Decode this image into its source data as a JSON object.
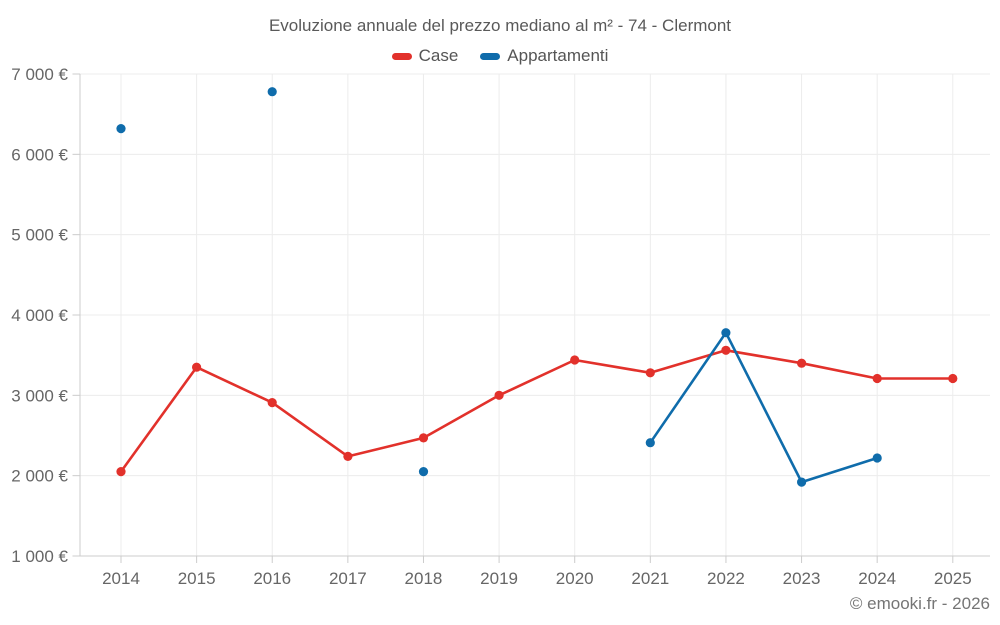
{
  "chart_data": {
    "type": "line",
    "title": "Evoluzione annuale del prezzo mediano al m² - 74 - Clermont",
    "x": [
      "2014",
      "2015",
      "2016",
      "2017",
      "2018",
      "2019",
      "2020",
      "2021",
      "2022",
      "2023",
      "2024",
      "2025"
    ],
    "series": [
      {
        "name": "Case",
        "color": "#e2312b",
        "values": [
          2050,
          3350,
          2910,
          2240,
          2470,
          3000,
          3440,
          3280,
          3560,
          3400,
          3210,
          3210
        ]
      },
      {
        "name": "Appartamenti",
        "color": "#0f6cab",
        "values": [
          6320,
          null,
          6780,
          null,
          2050,
          null,
          null,
          2410,
          3780,
          1920,
          2220,
          null
        ]
      }
    ],
    "ylim": [
      1000,
      7000
    ],
    "yticks": [
      {
        "value": 1000,
        "label": "1 000 €"
      },
      {
        "value": 2000,
        "label": "2 000 €"
      },
      {
        "value": 3000,
        "label": "3 000 €"
      },
      {
        "value": 4000,
        "label": "4 000 €"
      },
      {
        "value": 5000,
        "label": "5 000 €"
      },
      {
        "value": 6000,
        "label": "6 000 €"
      },
      {
        "value": 7000,
        "label": "7 000 €"
      }
    ],
    "grid": true,
    "legend_position": "top",
    "ylabel": "",
    "xlabel": ""
  },
  "footer": {
    "copyright": "© emooki.fr - 2026"
  },
  "colors": {
    "gridline": "#ececec",
    "axis": "#cccccc",
    "tick_label": "#666666",
    "title_text": "#595959",
    "footer_text": "#757575",
    "background": "#ffffff"
  }
}
